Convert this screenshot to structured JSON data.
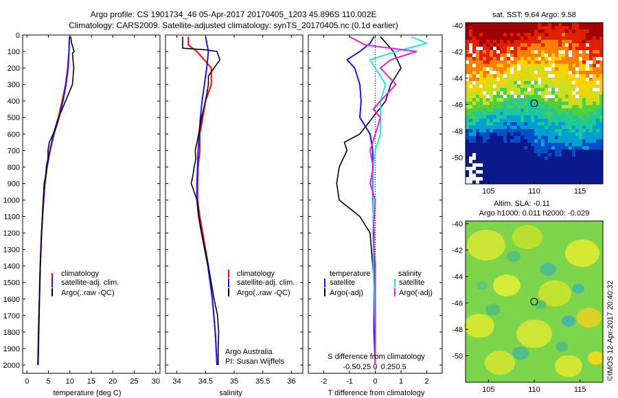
{
  "header": {
    "line1": "Argo profile: CS 1901734_46 05-Apr-2017 20170405_1203 45.896S 110.002E",
    "line2": "Climatology: CARS2009. Satellite-adjusted climatology: synTS_20170405.nc (0.1d earlier)"
  },
  "side_label": "©IMOS 12-Apr-2017 20:40:32",
  "depth_ticks": [
    0,
    100,
    200,
    300,
    400,
    500,
    600,
    700,
    800,
    900,
    1000,
    1100,
    1200,
    1300,
    1400,
    1500,
    1600,
    1700,
    1800,
    1900,
    2000
  ],
  "colors": {
    "climatology": "#ff0000",
    "satellite": "#1414ff",
    "argo": "#000000",
    "sal_satellite": "#22e6e6",
    "sal_argo": "#e020e0"
  },
  "chart_data": [
    {
      "type": "line",
      "xlabel": "temperature (deg C)",
      "ylabel": "",
      "xlim": [
        -1,
        31
      ],
      "ylim": [
        2050,
        0
      ],
      "xticks": [
        0,
        5,
        10,
        15,
        20,
        25,
        30
      ],
      "legend": {
        "position": "lower-middle",
        "items": [
          "climatology",
          "satellite-adj. clim.",
          "Argo(..raw -QC)"
        ]
      },
      "series": [
        {
          "key": "climatology",
          "depth": [
            10,
            100,
            200,
            300,
            400,
            500,
            600,
            700,
            800,
            900,
            1000,
            1200,
            1400,
            1600,
            1800,
            2000
          ],
          "values": [
            9.9,
            9.8,
            9.5,
            9.0,
            8.2,
            7.3,
            6.2,
            5.3,
            4.6,
            4.1,
            3.8,
            3.4,
            3.1,
            2.9,
            2.7,
            2.55
          ]
        },
        {
          "key": "satellite",
          "depth": [
            10,
            100,
            200,
            300,
            400,
            500,
            600,
            700,
            800,
            900,
            1000,
            1200,
            1400,
            1600,
            1800,
            2000
          ],
          "values": [
            9.9,
            9.8,
            9.6,
            9.1,
            8.4,
            7.5,
            6.3,
            5.4,
            4.7,
            4.2,
            3.9,
            3.4,
            3.1,
            2.9,
            2.75,
            2.6
          ]
        },
        {
          "key": "argo",
          "depth": [
            10,
            50,
            100,
            110,
            200,
            300,
            400,
            500,
            600,
            650,
            700,
            750,
            800,
            850,
            900,
            1000,
            1200,
            1400,
            1600,
            1800,
            2000
          ],
          "values": [
            10.2,
            10.4,
            11.0,
            10.6,
            10.9,
            10.6,
            9.0,
            7.4,
            6.1,
            5.2,
            4.9,
            4.9,
            4.5,
            4.4,
            4.0,
            3.8,
            3.4,
            3.1,
            2.9,
            2.7,
            2.55
          ]
        }
      ]
    },
    {
      "type": "line",
      "xlabel": "salinity",
      "ylabel": "",
      "xlim": [
        33.8,
        36.2
      ],
      "ylim": [
        2050,
        0
      ],
      "xticks": [
        34,
        34.5,
        35,
        35.5,
        36
      ],
      "xticklabels": [
        "34",
        "34.5",
        "35",
        "35.5",
        "36"
      ],
      "legend": {
        "position": "lower-middle",
        "items": [
          "climatology",
          "satellite-adj. clim.",
          "Argo(..raw -QC)"
        ]
      },
      "annotations": [
        "Argo Australia",
        "PI: Susan Wijffels"
      ],
      "series": [
        {
          "key": "climatology",
          "depth": [
            10,
            60,
            100,
            200,
            300,
            400,
            500,
            600,
            700,
            800,
            900,
            1000,
            1100,
            1200,
            1400,
            1600,
            1800,
            2000
          ],
          "values": [
            34.2,
            34.2,
            34.35,
            34.6,
            34.6,
            34.5,
            34.45,
            34.4,
            34.4,
            34.37,
            34.36,
            34.36,
            34.4,
            34.45,
            34.55,
            34.62,
            34.67,
            34.7
          ]
        },
        {
          "key": "satellite",
          "depth": [
            10,
            100,
            200,
            300,
            400,
            500,
            600,
            700,
            800,
            900,
            1000,
            1100,
            1200,
            1400,
            1600,
            1800,
            2000
          ],
          "values": [
            34.5,
            34.55,
            34.52,
            34.48,
            34.44,
            34.41,
            34.39,
            34.37,
            34.36,
            34.35,
            34.35,
            34.38,
            34.43,
            34.54,
            34.62,
            34.67,
            34.7
          ]
        },
        {
          "key": "argo",
          "depth": [
            10,
            80,
            90,
            100,
            150,
            200,
            250,
            300,
            400,
            500,
            600,
            700,
            750,
            800,
            850,
            900,
            950,
            1000,
            1100,
            1200,
            1400,
            1600,
            1700,
            1800,
            1900,
            2000
          ],
          "values": [
            34.1,
            34.1,
            34.5,
            34.7,
            34.75,
            34.65,
            34.55,
            34.55,
            34.5,
            34.43,
            34.38,
            34.32,
            34.33,
            34.3,
            34.28,
            34.25,
            34.3,
            34.35,
            34.38,
            34.43,
            34.55,
            34.65,
            34.71,
            34.73,
            34.72,
            34.72
          ]
        }
      ]
    },
    {
      "type": "line",
      "xlabel": "T difference from climatology",
      "ylabel": "",
      "xlim": [
        -2.6,
        2.6
      ],
      "ylim": [
        2050,
        0
      ],
      "xticks": [
        -2,
        -1,
        0,
        1,
        2
      ],
      "secondary_xlabel": "S difference from climatology",
      "secondary_xticklabels": [
        "-0.5",
        "-0.25",
        "0",
        "0.25",
        "0.5"
      ],
      "legend": {
        "position": "lower-middle",
        "titles": [
          "temperature",
          "salinity"
        ],
        "items": [
          "satellite",
          "Argo(-adj)",
          "satellite",
          "Argo(-adj)"
        ]
      },
      "series": [
        {
          "key": "satellite",
          "group": "temperature",
          "depth": [
            10,
            50,
            100,
            150,
            200,
            300,
            400,
            500,
            600,
            700,
            800,
            900,
            1000,
            1200,
            1400,
            1600,
            1800,
            2000
          ],
          "values": [
            -0.05,
            -0.2,
            -0.6,
            -1.1,
            -0.8,
            -0.6,
            -0.55,
            -0.6,
            -0.2,
            -0.1,
            -0.1,
            -0.1,
            -0.1,
            -0.05,
            -0.05,
            -0.05,
            -0.05,
            0.0
          ]
        },
        {
          "key": "argo",
          "group": "temperature",
          "depth": [
            10,
            100,
            200,
            300,
            400,
            500,
            600,
            650,
            700,
            800,
            900,
            1000,
            1100,
            1200,
            1400,
            1600,
            1800,
            2000
          ],
          "values": [
            0.2,
            0.7,
            1.0,
            0.6,
            0.4,
            -0.1,
            -0.6,
            -1.2,
            -1.1,
            -1.4,
            -1.5,
            -1.4,
            -0.6,
            -0.2,
            -0.1,
            0.0,
            0.0,
            0.0
          ]
        },
        {
          "key": "sal_satellite",
          "group": "salinity",
          "depth": [
            10,
            50,
            100,
            150,
            200,
            300,
            400,
            500,
            600,
            700,
            800,
            900,
            1000,
            1200,
            1400,
            1600,
            1800,
            2000
          ],
          "values": [
            0.35,
            0.5,
            0.2,
            -0.05,
            0.0,
            0.1,
            0.05,
            0.05,
            0.05,
            0.0,
            -0.02,
            -0.02,
            -0.02,
            -0.02,
            -0.02,
            -0.01,
            0.0,
            0.0
          ]
        },
        {
          "key": "sal_argo",
          "group": "salinity",
          "depth": [
            10,
            60,
            100,
            150,
            200,
            300,
            400,
            450,
            500,
            600,
            700,
            800,
            900,
            1000,
            1200,
            1400,
            1600,
            1800,
            2000
          ],
          "values": [
            -0.25,
            -0.1,
            0.4,
            0.15,
            0.05,
            0.2,
            0.05,
            -0.02,
            0.05,
            0.0,
            -0.05,
            -0.02,
            -0.05,
            0.0,
            -0.02,
            0.0,
            0.0,
            0.0,
            0.0
          ]
        }
      ]
    },
    {
      "type": "heatmap",
      "title": "sat. SST: 9.64  Argo: 9.58",
      "xlim": [
        102.5,
        117.5
      ],
      "ylim": [
        -52,
        -39.8
      ],
      "xticks": [
        105,
        110,
        115
      ],
      "yticks": [
        -40,
        -42,
        -44,
        -46,
        -48,
        -50
      ],
      "marker": {
        "lon": 110.0,
        "lat": -45.9
      },
      "colorscale": [
        "#0a1a8c",
        "#0050c8",
        "#00a0d0",
        "#20c8a0",
        "#50d040",
        "#c8e020",
        "#ffd000",
        "#ff8000",
        "#e02000",
        "#a00000"
      ]
    },
    {
      "type": "heatmap",
      "title": "Altim. SLA: -0.11",
      "subtitle": "Argo h1000: 0.011 h2000: -0.029",
      "xlim": [
        102.5,
        117.5
      ],
      "ylim": [
        -52,
        -39.8
      ],
      "xticks": [
        105,
        110,
        115
      ],
      "yticks": [
        -40,
        -42,
        -44,
        -46,
        -48,
        -50
      ],
      "marker": {
        "lon": 110.0,
        "lat": -45.9
      }
    }
  ]
}
